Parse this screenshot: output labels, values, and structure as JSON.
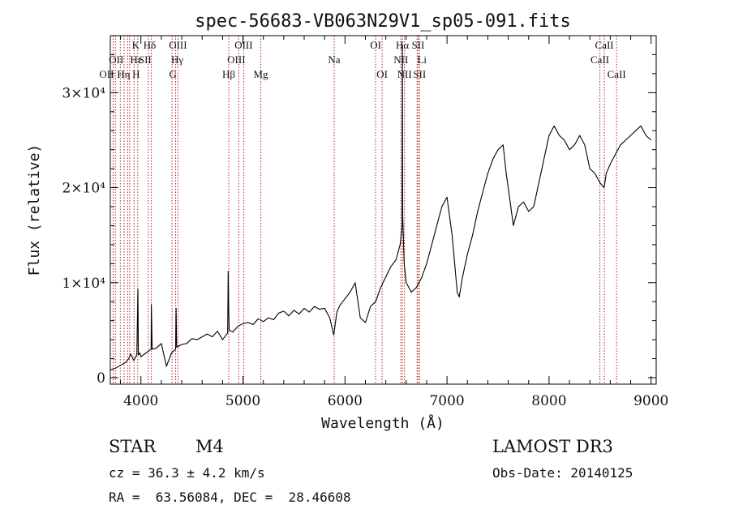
{
  "chart_data": {
    "type": "line",
    "title": "spec-56683-VB063N29V1_sp05-091.fits",
    "xlabel": "Wavelength (Å)",
    "ylabel": "Flux (relative)",
    "xlim": [
      3700,
      9050
    ],
    "ylim": [
      0,
      36000
    ],
    "x_ticks": [
      {
        "value": 4000,
        "label": "4000"
      },
      {
        "value": 5000,
        "label": "5000"
      },
      {
        "value": 6000,
        "label": "6000"
      },
      {
        "value": 7000,
        "label": "7000"
      },
      {
        "value": 8000,
        "label": "8000"
      },
      {
        "value": 9000,
        "label": "9000"
      }
    ],
    "y_ticks": [
      {
        "value": 0,
        "label": "0"
      },
      {
        "value": 10000,
        "label": "1×10⁴"
      },
      {
        "value": 20000,
        "label": "2×10⁴"
      },
      {
        "value": 30000,
        "label": "3×10⁴"
      }
    ],
    "series": [
      {
        "name": "spectrum",
        "x": [
          3700,
          3750,
          3800,
          3850,
          3880,
          3900,
          3930,
          3960,
          3970,
          3975,
          3990,
          4000,
          4050,
          4100,
          4102,
          4110,
          4150,
          4200,
          4250,
          4300,
          4340,
          4345,
          4350,
          4400,
          4450,
          4500,
          4550,
          4600,
          4650,
          4700,
          4750,
          4800,
          4850,
          4855,
          4861,
          4865,
          4900,
          4950,
          5000,
          5050,
          5100,
          5150,
          5200,
          5250,
          5300,
          5350,
          5400,
          5450,
          5500,
          5550,
          5600,
          5650,
          5700,
          5750,
          5800,
          5850,
          5890,
          5920,
          5950,
          6000,
          6050,
          6100,
          6150,
          6200,
          6250,
          6300,
          6350,
          6400,
          6450,
          6500,
          6540,
          6560,
          6563,
          6566,
          6580,
          6600,
          6650,
          6700,
          6750,
          6800,
          6850,
          6900,
          6950,
          7000,
          7050,
          7100,
          7120,
          7150,
          7200,
          7250,
          7300,
          7350,
          7400,
          7450,
          7500,
          7550,
          7580,
          7600,
          7650,
          7700,
          7750,
          7800,
          7850,
          7900,
          7950,
          8000,
          8050,
          8100,
          8150,
          8200,
          8250,
          8300,
          8350,
          8400,
          8450,
          8500,
          8540,
          8560,
          8600,
          8650,
          8700,
          8750,
          8800,
          8850,
          8900,
          8950,
          9000
        ],
        "y": [
          800,
          1000,
          1300,
          1600,
          2000,
          2500,
          1800,
          2400,
          9300,
          2400,
          2600,
          2200,
          2600,
          3000,
          7700,
          3000,
          3100,
          3600,
          1200,
          2600,
          3000,
          7300,
          3200,
          3500,
          3600,
          4100,
          4000,
          4300,
          4600,
          4300,
          4900,
          4000,
          4700,
          11200,
          7000,
          5000,
          4800,
          5400,
          5700,
          5800,
          5600,
          6200,
          5900,
          6300,
          6100,
          6800,
          7000,
          6500,
          7100,
          6700,
          7300,
          6900,
          7500,
          7200,
          7300,
          6300,
          4500,
          6900,
          7600,
          8300,
          9000,
          10000,
          6300,
          5800,
          7500,
          8000,
          9500,
          10600,
          11700,
          12400,
          14000,
          16000,
          35000,
          17000,
          12000,
          10000,
          9000,
          9500,
          10500,
          12000,
          14000,
          16000,
          18000,
          19000,
          15000,
          9000,
          8500,
          10500,
          13000,
          15000,
          17500,
          19500,
          21500,
          23000,
          24000,
          24500,
          21500,
          20000,
          16000,
          18000,
          18500,
          17500,
          18000,
          20500,
          23000,
          25500,
          26500,
          25500,
          25000,
          24000,
          24500,
          25500,
          24500,
          22000,
          21500,
          20500,
          20000,
          21500,
          22500,
          23500,
          24500,
          25000,
          25500,
          26000,
          26500,
          25500,
          25000
        ]
      }
    ],
    "lines": [
      {
        "lambda": 3727,
        "name": "OII",
        "row": 2,
        "label_dx": -8
      },
      {
        "lambda": 3750,
        "name": "",
        "row": 1,
        "label_dx": 0
      },
      {
        "lambda": 3798,
        "name": "Hη",
        "row": 2,
        "label_dx": 4
      },
      {
        "lambda": 3835,
        "name": "",
        "row": 1,
        "label_dx": 0
      },
      {
        "lambda": 3869,
        "name": "OII",
        "row": 1,
        "label_dx": -14
      },
      {
        "lambda": 3889,
        "name": "Hε",
        "row": 1,
        "label_dx": 8
      },
      {
        "lambda": 3933,
        "name": "K",
        "row": 0,
        "label_dx": 2
      },
      {
        "lambda": 3969,
        "name": "H",
        "row": 2,
        "label_dx": -2
      },
      {
        "lambda": 4072,
        "name": "SII",
        "row": 1,
        "label_dx": -4
      },
      {
        "lambda": 4102,
        "name": "Hδ",
        "row": 0,
        "label_dx": -2
      },
      {
        "lambda": 4305,
        "name": "G",
        "row": 2,
        "label_dx": 1
      },
      {
        "lambda": 4340,
        "name": "Hγ",
        "row": 1,
        "label_dx": 2
      },
      {
        "lambda": 4363,
        "name": "OIII",
        "row": 0,
        "label_dx": 0
      },
      {
        "lambda": 4861,
        "name": "Hβ",
        "row": 2,
        "label_dx": 0
      },
      {
        "lambda": 4959,
        "name": "OIII",
        "row": 1,
        "label_dx": -3
      },
      {
        "lambda": 5007,
        "name": "OIII",
        "row": 0,
        "label_dx": 0
      },
      {
        "lambda": 5175,
        "name": "Mg",
        "row": 2,
        "label_dx": 0
      },
      {
        "lambda": 5894,
        "name": "Na",
        "row": 1,
        "label_dx": 0
      },
      {
        "lambda": 6300,
        "name": "OI",
        "row": 0,
        "label_dx": 0
      },
      {
        "lambda": 6364,
        "name": "OI",
        "row": 2,
        "label_dx": 0
      },
      {
        "lambda": 6548,
        "name": "NII",
        "row": 1,
        "label_dx": 0
      },
      {
        "lambda": 6563,
        "name": "Hα",
        "row": 0,
        "label_dx": 0
      },
      {
        "lambda": 6583,
        "name": "NII",
        "row": 2,
        "label_dx": 0
      },
      {
        "lambda": 6707,
        "name": "Li",
        "row": 1,
        "label_dx": 6
      },
      {
        "lambda": 6716,
        "name": "SII",
        "row": 0,
        "label_dx": 0
      },
      {
        "lambda": 6731,
        "name": "SII",
        "row": 2,
        "label_dx": 0
      },
      {
        "lambda": 8498,
        "name": "CaII",
        "row": 1,
        "label_dx": 0
      },
      {
        "lambda": 8542,
        "name": "CaII",
        "row": 0,
        "label_dx": 0
      },
      {
        "lambda": 8662,
        "name": "CaII",
        "row": 2,
        "label_dx": 0
      }
    ]
  },
  "footer": {
    "class_label": "STAR",
    "subclass": "M4",
    "survey": "LAMOST DR3",
    "cz": "cz = 36.3 ± 4.2 km/s",
    "obs_date": "Obs-Date: 20140125",
    "coords": "RA =  63.56084, DEC =  28.46608"
  },
  "colors": {
    "spectrum": "#000000",
    "line_marker": "#b22222",
    "axis": "#000000"
  }
}
